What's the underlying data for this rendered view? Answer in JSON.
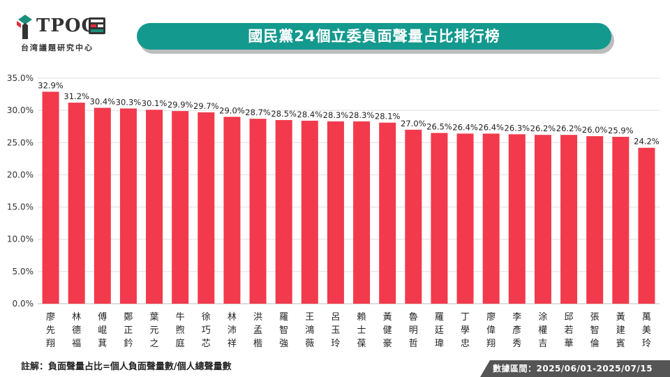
{
  "logo": {
    "name": "TPOC",
    "subtitle": "台湾議題研究中心",
    "colors": {
      "green": "#1a8f7c",
      "red": "#e1303f",
      "dark": "#333333"
    }
  },
  "header": {
    "title": "國民黨24個立委負面聲量占比排行榜"
  },
  "footer": {
    "note": "註解：負面聲量占比=個人負面聲量數/個人總聲量數",
    "date_range": "數據區間：2025/06/01-2025/07/15"
  },
  "colors": {
    "bar": "#f23a4c",
    "title_bg": "#13998e",
    "grid": "#dddddd",
    "date_bg": "#555555"
  },
  "chart_data": {
    "type": "bar",
    "title": "國民黨24個立委負面聲量占比排行榜",
    "xlabel": "",
    "ylabel": "",
    "ylim": [
      0,
      35
    ],
    "yticks": [
      "0.0%",
      "5.0%",
      "10.0%",
      "15.0%",
      "20.0%",
      "25.0%",
      "30.0%",
      "35.0%"
    ],
    "ytick_values": [
      0,
      5,
      10,
      15,
      20,
      25,
      30,
      35
    ],
    "grid": true,
    "categories": [
      "廖先翔",
      "林德福",
      "傅崐萁",
      "鄭正鈐",
      "葉元之",
      "牛煦庭",
      "徐巧芯",
      "林沛祥",
      "洪孟楷",
      "羅智強",
      "王鴻薇",
      "呂玉玲",
      "賴士葆",
      "黃健豪",
      "魯明哲",
      "羅廷瑋",
      "丁學忠",
      "廖偉翔",
      "李彥秀",
      "涂權吉",
      "邱若華",
      "張智倫",
      "黃建賓",
      "萬美玲"
    ],
    "values": [
      32.9,
      31.2,
      30.4,
      30.3,
      30.1,
      29.9,
      29.7,
      29.0,
      28.7,
      28.5,
      28.4,
      28.3,
      28.3,
      28.1,
      27.0,
      26.5,
      26.4,
      26.4,
      26.3,
      26.2,
      26.2,
      26.0,
      25.9,
      24.2
    ],
    "labels": [
      "32.9%",
      "31.2%",
      "30.4%",
      "30.3%",
      "30.1%",
      "29.9%",
      "29.7%",
      "29.0%",
      "28.7%",
      "28.5%",
      "28.4%",
      "28.3%",
      "28.3%",
      "28.1%",
      "27.0%",
      "26.5%",
      "26.4%",
      "26.4%",
      "26.3%",
      "26.2%",
      "26.2%",
      "26.0%",
      "25.9%",
      "24.2%"
    ]
  }
}
